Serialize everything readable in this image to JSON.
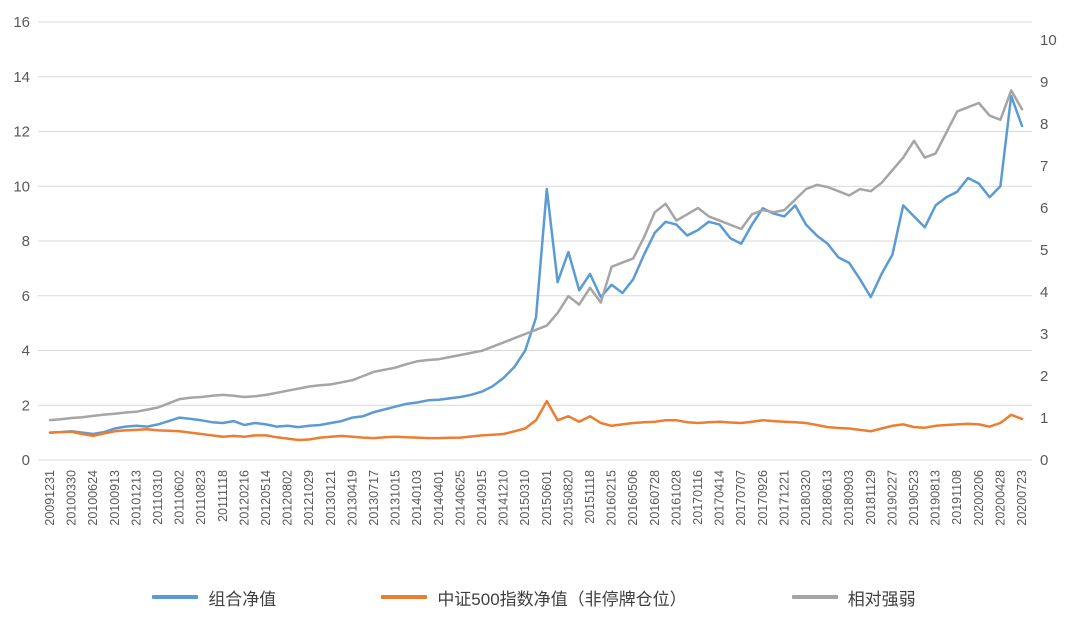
{
  "chart_data": {
    "type": "line",
    "title": "",
    "grid": "horizontal",
    "legend_position": "bottom",
    "background_color": "#ffffff",
    "gridline_color": "#d9d9d9",
    "axis_text_color": "#595959",
    "left_axis": {
      "min": 0,
      "max": 16,
      "tick_step": 2,
      "ticks": [
        0,
        2,
        4,
        6,
        8,
        10,
        12,
        14,
        16
      ]
    },
    "right_axis": {
      "min": 0,
      "max": 10,
      "tick_step": 1,
      "ticks": [
        0,
        1,
        2,
        3,
        4,
        5,
        6,
        7,
        8,
        9,
        10
      ]
    },
    "x_labels": [
      "20091231",
      "20100330",
      "20100624",
      "20100913",
      "20101213",
      "20110310",
      "20110602",
      "20110823",
      "20111118",
      "20120216",
      "20120514",
      "20120802",
      "20121029",
      "20130121",
      "20130419",
      "20130717",
      "20131015",
      "20140103",
      "20140401",
      "20140625",
      "20140915",
      "20141210",
      "20150310",
      "20150601",
      "20150820",
      "20151118",
      "20160215",
      "20160506",
      "20160728",
      "20161028",
      "20170116",
      "20170414",
      "20170707",
      "20170926",
      "20171221",
      "20180320",
      "20180613",
      "20180903",
      "20181129",
      "20190227",
      "20190523",
      "20190813",
      "20191108",
      "20200206",
      "20200428",
      "20200723"
    ],
    "points_per_label_interval": 2,
    "series": [
      {
        "name": "组合净值",
        "axis": "left",
        "color": "#5B9BD5",
        "values": [
          1.0,
          1.02,
          1.05,
          1.0,
          0.95,
          1.02,
          1.15,
          1.22,
          1.25,
          1.22,
          1.3,
          1.42,
          1.55,
          1.5,
          1.45,
          1.38,
          1.35,
          1.42,
          1.28,
          1.35,
          1.3,
          1.22,
          1.25,
          1.2,
          1.25,
          1.28,
          1.35,
          1.42,
          1.55,
          1.6,
          1.75,
          1.85,
          1.95,
          2.05,
          2.1,
          2.18,
          2.2,
          2.25,
          2.3,
          2.38,
          2.5,
          2.7,
          3.0,
          3.4,
          4.0,
          5.2,
          9.9,
          6.5,
          7.6,
          6.2,
          6.8,
          5.95,
          6.4,
          6.1,
          6.6,
          7.5,
          8.3,
          8.7,
          8.6,
          8.2,
          8.4,
          8.7,
          8.6,
          8.1,
          7.9,
          8.6,
          9.2,
          9.0,
          8.9,
          9.3,
          8.6,
          8.2,
          7.9,
          7.4,
          7.2,
          6.6,
          5.95,
          6.8,
          7.5,
          9.3,
          8.9,
          8.5,
          9.3,
          9.6,
          9.8,
          10.3,
          10.1,
          9.6,
          10.0,
          13.3,
          12.2
        ]
      },
      {
        "name": "中证500指数净值（非停牌仓位）",
        "axis": "left",
        "color": "#ED7D31",
        "values": [
          1.0,
          1.02,
          1.03,
          0.95,
          0.88,
          0.97,
          1.05,
          1.08,
          1.1,
          1.12,
          1.08,
          1.07,
          1.05,
          1.0,
          0.95,
          0.9,
          0.85,
          0.88,
          0.85,
          0.9,
          0.9,
          0.83,
          0.78,
          0.73,
          0.75,
          0.82,
          0.85,
          0.88,
          0.85,
          0.82,
          0.8,
          0.83,
          0.85,
          0.83,
          0.82,
          0.8,
          0.8,
          0.81,
          0.82,
          0.86,
          0.9,
          0.92,
          0.95,
          1.05,
          1.15,
          1.45,
          2.15,
          1.45,
          1.6,
          1.4,
          1.6,
          1.35,
          1.25,
          1.3,
          1.35,
          1.38,
          1.4,
          1.45,
          1.45,
          1.38,
          1.35,
          1.38,
          1.4,
          1.37,
          1.35,
          1.4,
          1.45,
          1.42,
          1.4,
          1.38,
          1.35,
          1.28,
          1.2,
          1.17,
          1.15,
          1.1,
          1.05,
          1.15,
          1.25,
          1.3,
          1.2,
          1.18,
          1.25,
          1.28,
          1.3,
          1.32,
          1.3,
          1.22,
          1.35,
          1.65,
          1.5
        ]
      },
      {
        "name": "相对强弱",
        "axis": "right",
        "color": "#A5A5A5",
        "values": [
          0.95,
          0.97,
          1.0,
          1.02,
          1.05,
          1.08,
          1.1,
          1.13,
          1.15,
          1.2,
          1.25,
          1.35,
          1.45,
          1.48,
          1.5,
          1.53,
          1.55,
          1.53,
          1.5,
          1.52,
          1.55,
          1.6,
          1.65,
          1.7,
          1.75,
          1.78,
          1.8,
          1.85,
          1.9,
          2.0,
          2.1,
          2.15,
          2.2,
          2.28,
          2.35,
          2.38,
          2.4,
          2.45,
          2.5,
          2.55,
          2.6,
          2.7,
          2.8,
          2.9,
          3.0,
          3.1,
          3.2,
          3.5,
          3.9,
          3.7,
          4.1,
          3.75,
          4.6,
          4.7,
          4.8,
          5.3,
          5.9,
          6.1,
          5.7,
          5.85,
          6.0,
          5.8,
          5.7,
          5.6,
          5.5,
          5.85,
          5.95,
          5.9,
          5.95,
          6.2,
          6.45,
          6.55,
          6.5,
          6.4,
          6.3,
          6.45,
          6.4,
          6.6,
          6.9,
          7.2,
          7.6,
          7.2,
          7.3,
          7.8,
          8.3,
          8.4,
          8.5,
          8.2,
          8.1,
          8.8,
          8.35
        ]
      }
    ]
  },
  "legend": {
    "items": [
      "组合净值",
      "中证500指数净值（非停牌仓位）",
      "相对强弱"
    ]
  }
}
